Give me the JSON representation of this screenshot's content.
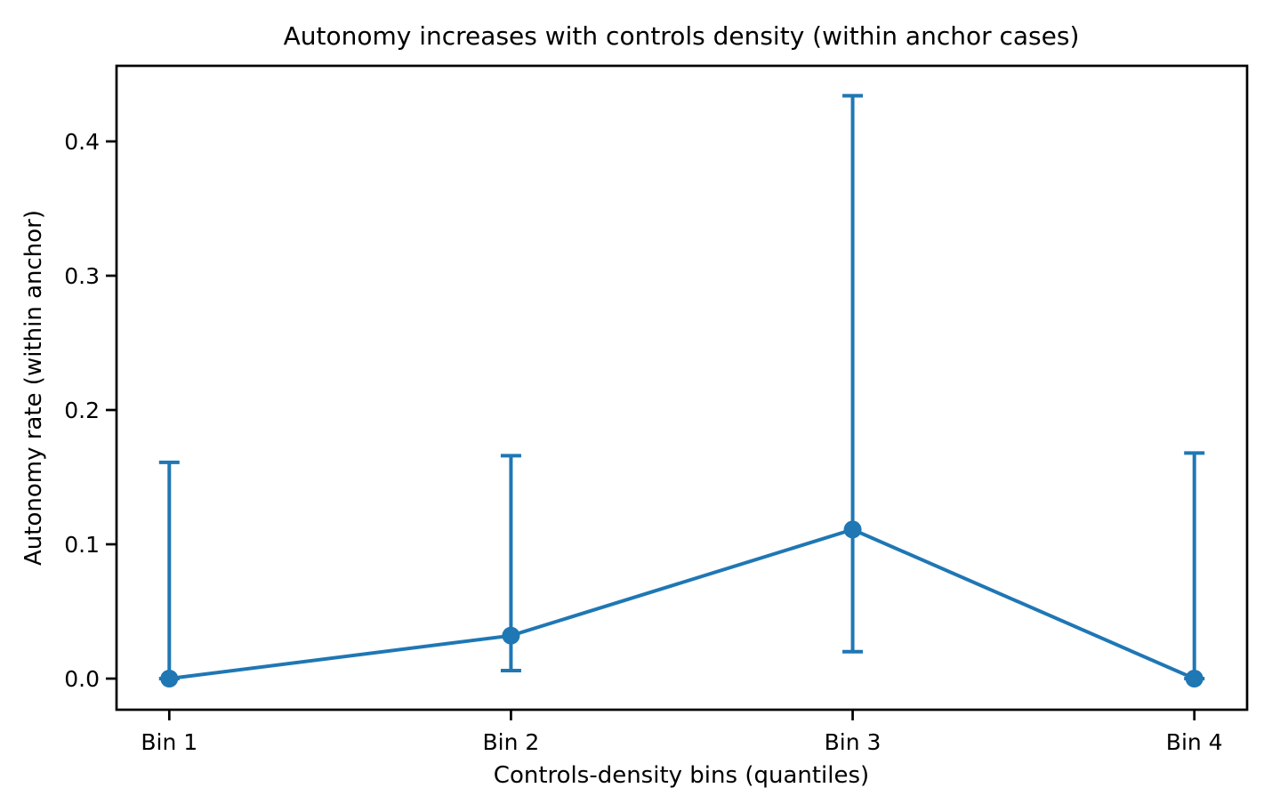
{
  "chart_data": {
    "type": "line",
    "title": "Autonomy increases with controls density (within anchor cases)",
    "xlabel": "Controls-density bins (quantiles)",
    "ylabel": "Autonomy rate (within anchor)",
    "categories": [
      "Bin 1",
      "Bin 2",
      "Bin 3",
      "Bin 4"
    ],
    "series": [
      {
        "name": "Autonomy rate",
        "values": [
          0.0,
          0.032,
          0.111,
          0.0
        ],
        "ci_lower": [
          0.0,
          0.006,
          0.02,
          0.0
        ],
        "ci_upper": [
          0.161,
          0.166,
          0.434,
          0.168
        ]
      }
    ],
    "y_ticks": [
      0.0,
      0.1,
      0.2,
      0.3,
      0.4
    ],
    "y_tick_labels": [
      "0.0",
      "0.1",
      "0.2",
      "0.3",
      "0.4"
    ],
    "ylim": [
      -0.023,
      0.456
    ],
    "grid": false,
    "legend": "none",
    "line_color": "#1f77b4",
    "axis_color": "#000000",
    "marker": "o"
  }
}
